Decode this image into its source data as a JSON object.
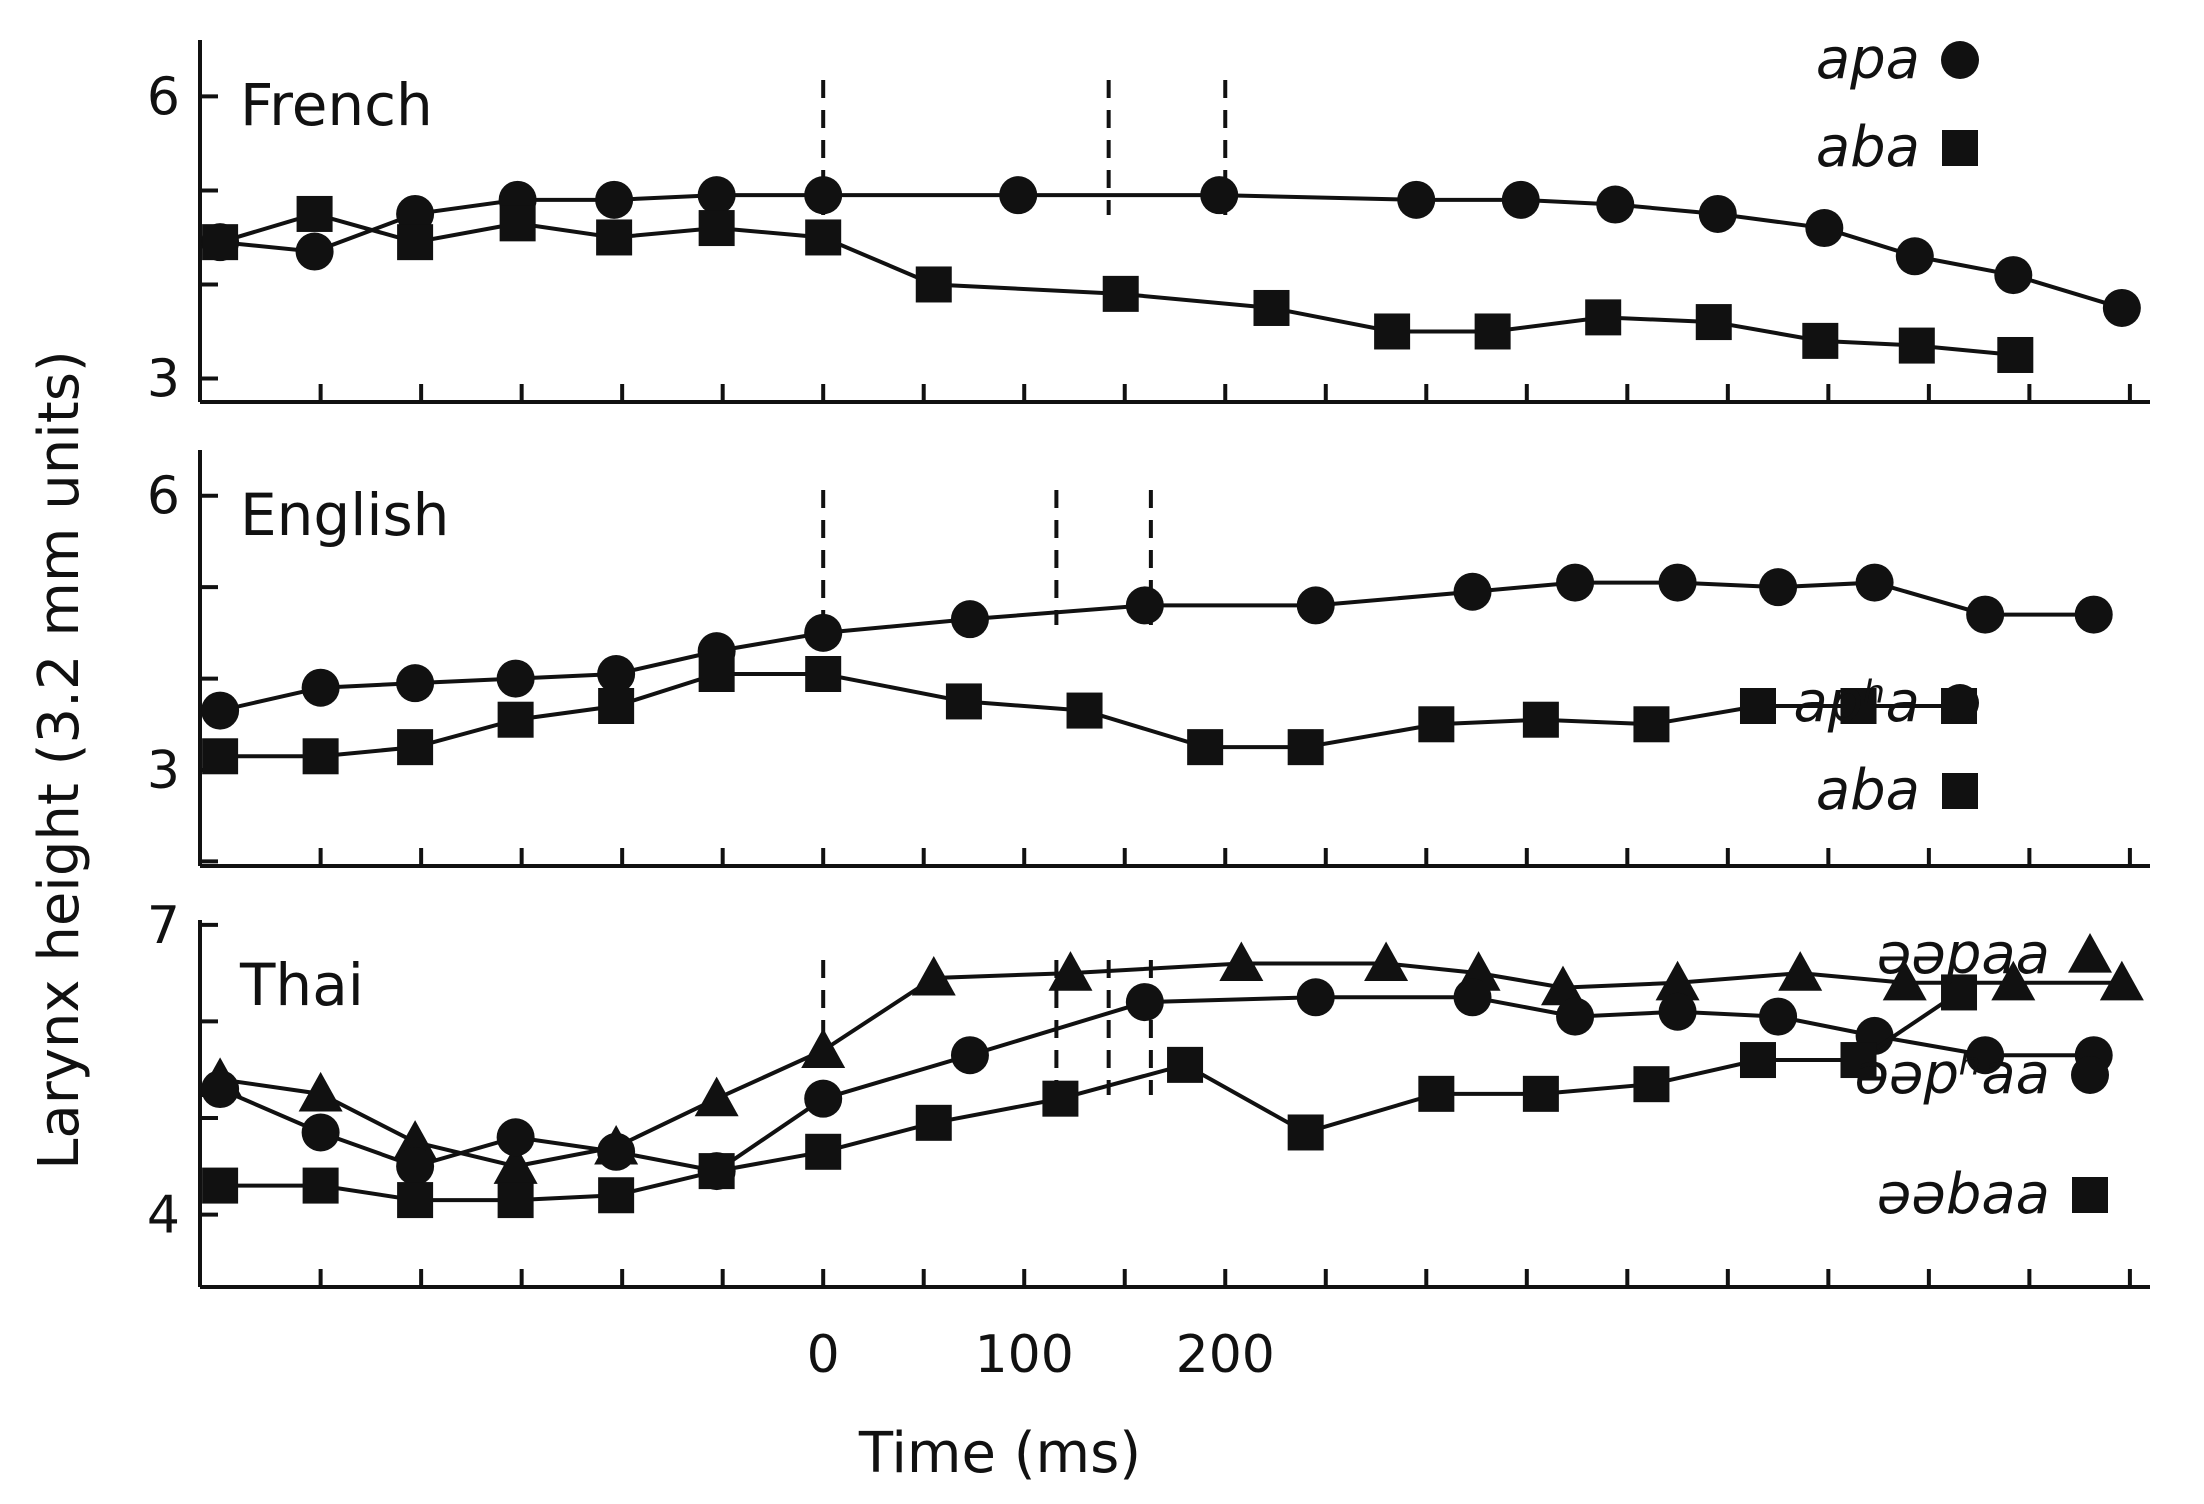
{
  "chart_data": {
    "type": "line",
    "xlabel": "Time (ms)",
    "ylabel": "Larynx height (3.2 mm units)",
    "xlim": [
      -310,
      660
    ],
    "x_ticks": [
      0,
      100,
      200
    ],
    "colors": {
      "ink": "#111111",
      "background": "#ffffff"
    },
    "panels": [
      {
        "title": "French",
        "ylim": [
          2.75,
          6.6
        ],
        "y_ticks": [
          3,
          6
        ],
        "event_markers": [
          0,
          200,
          142
        ],
        "legend": [
          {
            "label": "apa",
            "marker": "circle"
          },
          {
            "label": "aba",
            "marker": "square"
          }
        ],
        "series": [
          {
            "name": "apa",
            "marker": "circle",
            "x": [
              -300,
              -253,
              -203,
              -152,
              -104,
              -53,
              0,
              97,
              197,
              295,
              347,
              394,
              445,
              498,
              543,
              592,
              646
            ],
            "y": [
              4.45,
              4.35,
              4.75,
              4.9,
              4.9,
              4.95,
              4.95,
              4.95,
              4.95,
              4.9,
              4.9,
              4.85,
              4.75,
              4.6,
              4.3,
              4.1,
              3.75
            ]
          },
          {
            "name": "aba",
            "marker": "square",
            "x": [
              -300,
              -253,
              -203,
              -152,
              -104,
              -53,
              0,
              55,
              148,
              223,
              283,
              333,
              388,
              443,
              496,
              544,
              593
            ],
            "y": [
              4.45,
              4.75,
              4.45,
              4.65,
              4.5,
              4.6,
              4.5,
              4.0,
              3.9,
              3.75,
              3.5,
              3.5,
              3.65,
              3.6,
              3.4,
              3.35,
              3.25
            ]
          }
        ]
      },
      {
        "title": "English",
        "ylim": [
          1.95,
          6.5
        ],
        "y_ticks": [
          3,
          6
        ],
        "event_markers": [
          0,
          163,
          116
        ],
        "legend": [
          {
            "label": "apʰa",
            "marker": "circle"
          },
          {
            "label": "aba",
            "marker": "square"
          }
        ],
        "series": [
          {
            "name": "apʰa",
            "marker": "circle",
            "x": [
              -300,
              -250,
              -203,
              -153,
              -103,
              -53,
              0,
              73,
              160,
              245,
              323,
              374,
              425,
              475,
              523,
              578,
              632
            ],
            "y": [
              3.65,
              3.9,
              3.95,
              4.0,
              4.05,
              4.3,
              4.5,
              4.65,
              4.8,
              4.8,
              4.95,
              5.05,
              5.05,
              5.0,
              5.05,
              4.7,
              4.7
            ]
          },
          {
            "name": "aba",
            "marker": "square",
            "x": [
              -300,
              -250,
              -203,
              -153,
              -103,
              -53,
              0,
              70,
              130,
              190,
              240,
              305,
              357,
              412,
              465,
              515,
              565
            ],
            "y": [
              3.15,
              3.15,
              3.25,
              3.55,
              3.7,
              4.05,
              4.05,
              3.75,
              3.65,
              3.25,
              3.25,
              3.5,
              3.55,
              3.5,
              3.7,
              3.7,
              3.7
            ]
          }
        ]
      },
      {
        "title": "Thai",
        "ylim": [
          3.25,
          7.05
        ],
        "y_ticks": [
          4,
          7
        ],
        "event_markers": [
          0,
          163,
          116,
          142
        ],
        "legend": [
          {
            "label": "əəpaa",
            "marker": "triangle"
          },
          {
            "label": "əəpʰaa",
            "marker": "circle"
          },
          {
            "label": "əəbaa",
            "marker": "square"
          }
        ],
        "series": [
          {
            "name": "əəpaa",
            "marker": "triangle",
            "x": [
              -300,
              -250,
              -203,
              -153,
              -103,
              -53,
              0,
              55,
              123,
              208,
              280,
              326,
              368,
              425,
              486,
              538,
              592,
              646
            ],
            "y": [
              5.4,
              5.25,
              4.75,
              4.5,
              4.7,
              5.2,
              5.7,
              6.45,
              6.5,
              6.6,
              6.6,
              6.5,
              6.35,
              6.4,
              6.5,
              6.4,
              6.4,
              6.4
            ]
          },
          {
            "name": "əəpʰaa",
            "marker": "circle",
            "x": [
              -300,
              -250,
              -203,
              -153,
              -103,
              -53,
              0,
              73,
              160,
              245,
              323,
              374,
              425,
              475,
              523,
              578,
              632
            ],
            "y": [
              5.3,
              4.85,
              4.5,
              4.8,
              4.65,
              4.45,
              5.2,
              5.65,
              6.2,
              6.25,
              6.25,
              6.05,
              6.1,
              6.05,
              5.85,
              5.65,
              5.65
            ]
          },
          {
            "name": "əəbaa",
            "marker": "square",
            "x": [
              -300,
              -250,
              -203,
              -153,
              -103,
              -53,
              0,
              55,
              118,
              180,
              240,
              305,
              357,
              412,
              465,
              515,
              565
            ],
            "y": [
              4.3,
              4.3,
              4.15,
              4.15,
              4.2,
              4.45,
              4.65,
              4.95,
              5.2,
              5.55,
              4.85,
              5.25,
              5.25,
              5.35,
              5.6,
              5.6,
              6.3
            ]
          }
        ]
      }
    ]
  }
}
